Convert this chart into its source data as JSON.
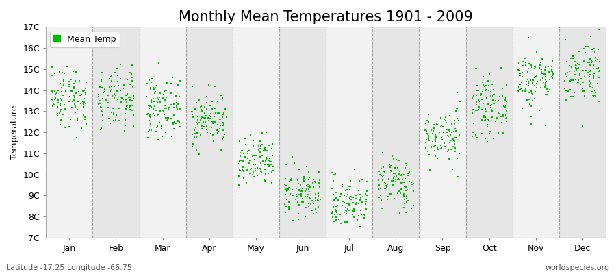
{
  "title": "Monthly Mean Temperatures 1901 - 2009",
  "ylabel": "Temperature",
  "ylim": [
    7,
    17
  ],
  "yticks": [
    7,
    8,
    9,
    10,
    11,
    12,
    13,
    14,
    15,
    16,
    17
  ],
  "ytick_labels": [
    "7C",
    "8C",
    "9C",
    "10C",
    "11C",
    "12C",
    "13C",
    "14C",
    "15C",
    "16C",
    "17C"
  ],
  "months": [
    "Jan",
    "Feb",
    "Mar",
    "Apr",
    "May",
    "Jun",
    "Jul",
    "Aug",
    "Sep",
    "Oct",
    "Nov",
    "Dec"
  ],
  "month_means": [
    13.7,
    13.5,
    13.2,
    12.6,
    10.5,
    9.1,
    8.7,
    9.6,
    11.8,
    13.2,
    14.5,
    14.9
  ],
  "month_stds": [
    0.75,
    0.72,
    0.68,
    0.62,
    0.6,
    0.58,
    0.6,
    0.62,
    0.65,
    0.68,
    0.72,
    0.75
  ],
  "n_years": 109,
  "dot_color": "#00bb00",
  "dot_size": 3.5,
  "bg_color": "#ffffff",
  "band_color_dark": "#e6e6e6",
  "band_color_light": "#f2f2f2",
  "grid_color": "#888888",
  "legend_label": "Mean Temp",
  "subtitle_left": "Latitude -17.25 Longitude -66.75",
  "subtitle_right": "worldspecies.org",
  "title_fontsize": 15,
  "label_fontsize": 9,
  "tick_fontsize": 9,
  "subtitle_fontsize": 8,
  "legend_fontsize": 9
}
